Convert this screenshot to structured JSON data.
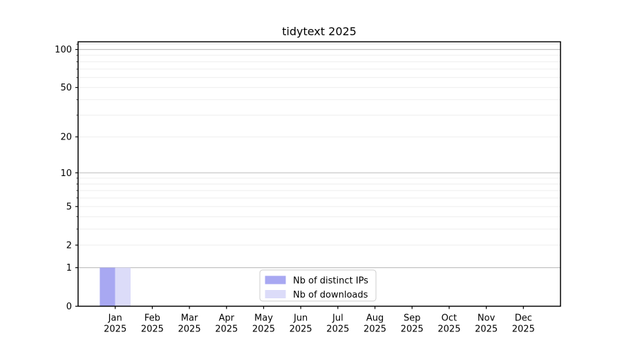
{
  "chart_data": {
    "type": "bar",
    "title": "tidytext 2025",
    "categories": [
      "Jan 2025",
      "Feb 2025",
      "Mar 2025",
      "Apr 2025",
      "May 2025",
      "Jun 2025",
      "Jul 2025",
      "Aug 2025",
      "Sep 2025",
      "Oct 2025",
      "Nov 2025",
      "Dec 2025"
    ],
    "series": [
      {
        "name": "Nb of distinct IPs",
        "color": "#a8a8f2",
        "values": [
          1,
          0,
          0,
          0,
          0,
          0,
          0,
          0,
          0,
          0,
          0,
          0
        ]
      },
      {
        "name": "Nb of downloads",
        "color": "#dcdcf9",
        "values": [
          1,
          0,
          0,
          0,
          0,
          0,
          0,
          0,
          0,
          0,
          0,
          0
        ]
      }
    ],
    "yscale": "log1p",
    "ylim": [
      0,
      115
    ],
    "y_ticks_labeled": [
      0,
      1,
      2,
      5,
      10,
      20,
      50,
      100
    ],
    "y_gridlines_major": [
      1,
      10,
      100
    ],
    "y_gridlines_minor": [
      2,
      3,
      4,
      5,
      6,
      7,
      8,
      9,
      20,
      30,
      40,
      50,
      60,
      70,
      80,
      90,
      110
    ],
    "grid": true,
    "legend_position": "lower center",
    "colors": {
      "grid_major": "#c2c2c2",
      "grid_minor": "#ededed",
      "axis": "#000000"
    }
  }
}
